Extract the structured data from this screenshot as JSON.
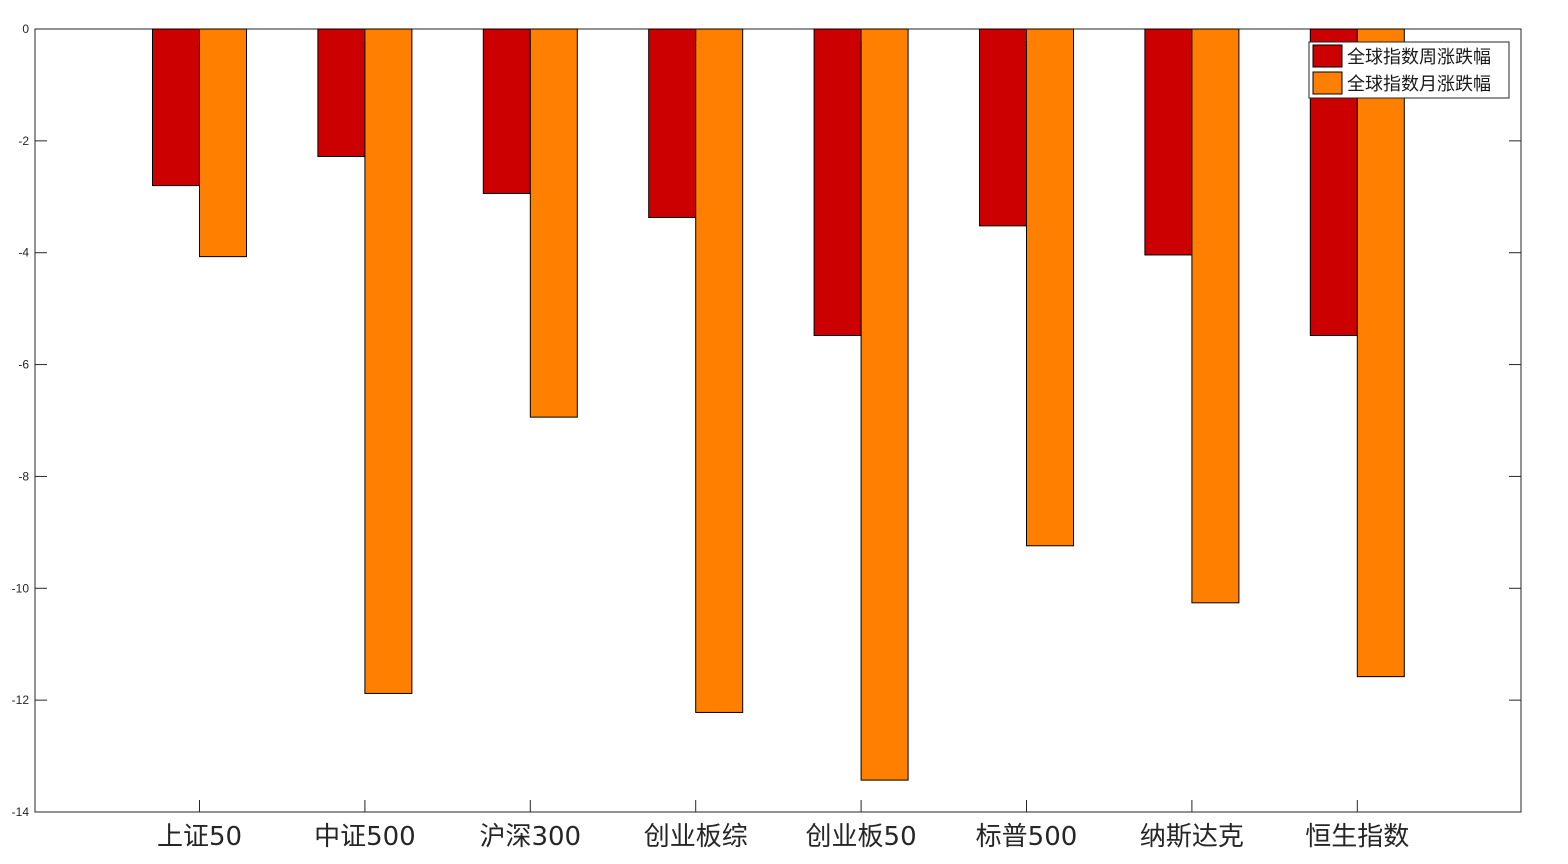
{
  "chart_data": {
    "type": "bar",
    "categories": [
      "上证50",
      "中证500",
      "沪深300",
      "创业板综",
      "创业板50",
      "标普500",
      "纳斯达克",
      "恒生指数"
    ],
    "series": [
      {
        "name": "全球指数周涨跌幅",
        "color": "#cc0000",
        "values": [
          -2.8,
          -2.28,
          -2.94,
          -3.37,
          -5.48,
          -3.52,
          -4.04,
          -5.48
        ]
      },
      {
        "name": "全球指数月涨跌幅",
        "color": "#ff8000",
        "values": [
          -4.07,
          -11.88,
          -6.94,
          -12.22,
          -13.43,
          -9.24,
          -10.26,
          -11.58
        ]
      }
    ],
    "ylim": [
      -14,
      0
    ],
    "yticks": [
      0,
      -2,
      -4,
      -6,
      -8,
      -10,
      -12,
      -14
    ],
    "ytick_labels": [
      "0",
      "-2",
      "-4",
      "-6",
      "-8",
      "-10",
      "-12",
      "-14"
    ],
    "legend_position": "top-right",
    "grid": false,
    "title": "",
    "xlabel": "",
    "ylabel": ""
  }
}
